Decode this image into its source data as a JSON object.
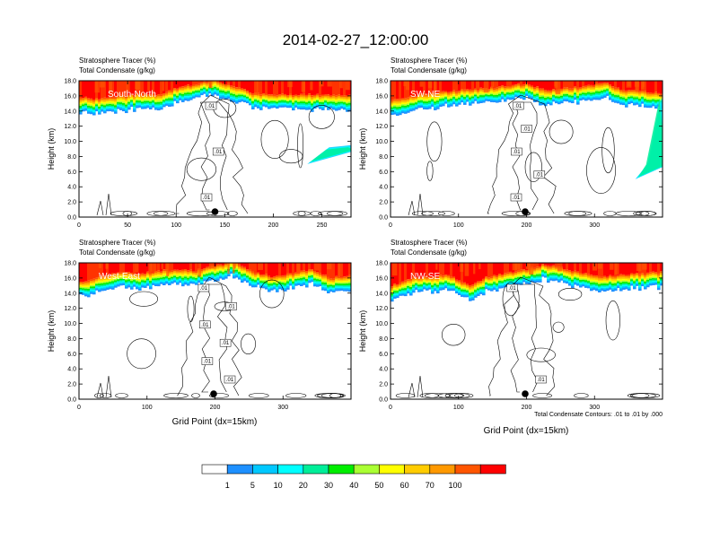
{
  "page": {
    "title": "2014-02-27_12:00:00",
    "footnote": "Total Condensate Contours: .01 to .01 by .000"
  },
  "colorbar": {
    "ticks": [
      "1",
      "5",
      "10",
      "20",
      "30",
      "40",
      "50",
      "60",
      "70",
      "100"
    ],
    "colors": [
      "#ffffff",
      "#1e90ff",
      "#00c8ff",
      "#00ffff",
      "#00ee99",
      "#00ee00",
      "#aaff33",
      "#ffff00",
      "#ffcc00",
      "#ff9900",
      "#ff5500",
      "#ff0000"
    ]
  },
  "chart_data": [
    {
      "type": "contour",
      "panel_label": "South-North",
      "top_label_1": "Stratosphere Tracer   (%)",
      "top_label_2": "Total Condensate   (g/kg)",
      "ylabel": "Height (km)",
      "xlabel": "",
      "xlim": [
        0,
        280
      ],
      "ylim": [
        0,
        18
      ],
      "xticks": [
        0,
        50,
        100,
        150,
        200,
        250
      ],
      "yticks": [
        "0.0",
        "2.0",
        "4.0",
        "6.0",
        "8.0",
        "10.0",
        "12.0",
        "14.0",
        "16.0",
        "18.0"
      ],
      "contour_labels": [
        ".01",
        ".01",
        ".01"
      ],
      "marker_x": 140,
      "tropopause_km": [
        14.2,
        14.0,
        14.4,
        14.6,
        14.5,
        15.4,
        16.0,
        16.6,
        15.6,
        14.8,
        14.6,
        14.6,
        14.6,
        14.5,
        14.5
      ],
      "tracer_right_intrusion": {
        "x_start": 235,
        "x_end": 280,
        "km_low": 7.0,
        "km_high": 9.5
      }
    },
    {
      "type": "contour",
      "panel_label": "SW-NE",
      "top_label_1": "Stratosphere Tracer   (%)",
      "top_label_2": "Total Condensate   (g/kg)",
      "ylabel": "Height (km)",
      "xlabel": "",
      "xlim": [
        0,
        400
      ],
      "ylim": [
        0,
        18
      ],
      "xticks": [
        0,
        100,
        200,
        300
      ],
      "yticks": [
        "0.0",
        "2.0",
        "4.0",
        "6.0",
        "8.0",
        "10.0",
        "12.0",
        "14.0",
        "16.0",
        "18.0"
      ],
      "contour_labels": [
        ".01",
        ".01",
        ".01",
        ".01",
        ".01"
      ],
      "marker_x": 198,
      "tropopause_km": [
        13.8,
        14.4,
        14.8,
        15.0,
        15.3,
        15.4,
        15.8,
        16.0,
        15.2,
        15.4,
        15.6,
        16.2,
        15.2,
        15.0,
        14.8
      ],
      "tracer_right_intrusion": {
        "x_start": 360,
        "x_end": 400,
        "km_low": 5.0,
        "km_high": 16.0
      }
    },
    {
      "type": "contour",
      "panel_label": "West-East",
      "top_label_1": "Stratosphere Tracer   (%)",
      "top_label_2": "Total Condensate   (g/kg)",
      "ylabel": "Height (km)",
      "xlabel": "Grid Point (dx=15km)",
      "xlim": [
        0,
        400
      ],
      "ylim": [
        0,
        18
      ],
      "xticks": [
        0,
        100,
        200,
        300
      ],
      "yticks": [
        "0.0",
        "2.0",
        "4.0",
        "6.0",
        "8.0",
        "10.0",
        "12.0",
        "14.0",
        "16.0",
        "18.0"
      ],
      "contour_labels": [
        ".01",
        ".01",
        ".01",
        ".01",
        ".01",
        ".01"
      ],
      "marker_x": 198,
      "tropopause_km": [
        13.8,
        14.6,
        15.2,
        15.0,
        15.3,
        15.6,
        15.4,
        16.0,
        16.6,
        15.2,
        14.6,
        15.0,
        15.6,
        14.4,
        14.8
      ],
      "tracer_right_intrusion": null
    },
    {
      "type": "contour",
      "panel_label": "NW-SE",
      "top_label_1": "Stratosphere Tracer   (%)",
      "top_label_2": "Total Condensate   (g/kg)",
      "ylabel": "Height (km)",
      "xlabel": "Grid Point (dx=15km)",
      "xlim": [
        0,
        400
      ],
      "ylim": [
        0,
        18
      ],
      "xticks": [
        0,
        100,
        200,
        300
      ],
      "yticks": [
        "0.0",
        "2.0",
        "4.0",
        "6.0",
        "8.0",
        "10.0",
        "12.0",
        "14.0",
        "16.0",
        "18.0"
      ],
      "contour_labels": [
        ".01",
        ".01"
      ],
      "marker_x": 198,
      "tropopause_km": [
        13.4,
        14.4,
        14.6,
        14.8,
        13.4,
        14.6,
        15.0,
        15.6,
        16.2,
        15.6,
        15.0,
        14.6,
        14.8,
        15.0,
        15.2
      ],
      "tracer_right_intrusion": null
    }
  ]
}
